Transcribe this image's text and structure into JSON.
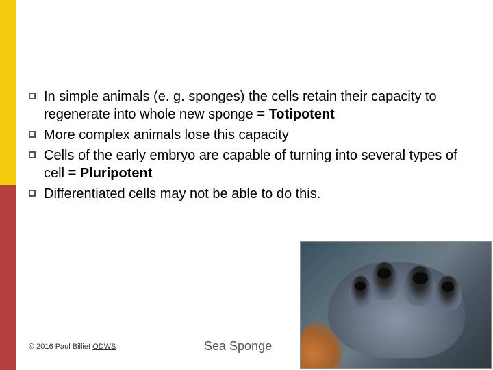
{
  "accent": {
    "top_color": "#f3cc0c",
    "bottom_color": "#b44040"
  },
  "bullets": [
    {
      "text_html": "In simple animals (e. g. sponges) the cells retain their capacity to regenerate into whole new sponge <b>= Totipotent</b>"
    },
    {
      "text_html": "More complex animals lose this capacity"
    },
    {
      "text_html": "Cells of the early embryo are capable of turning into several types of cell <b>= Pluripotent</b>"
    },
    {
      "text_html": "Differentiated cells may not be able to do this."
    }
  ],
  "footer": {
    "copyright": "© 2016 Paul Billiet ",
    "link_text": "ODWS"
  },
  "caption": "Sea Sponge",
  "image": {
    "alt": "Sea sponge photograph"
  }
}
